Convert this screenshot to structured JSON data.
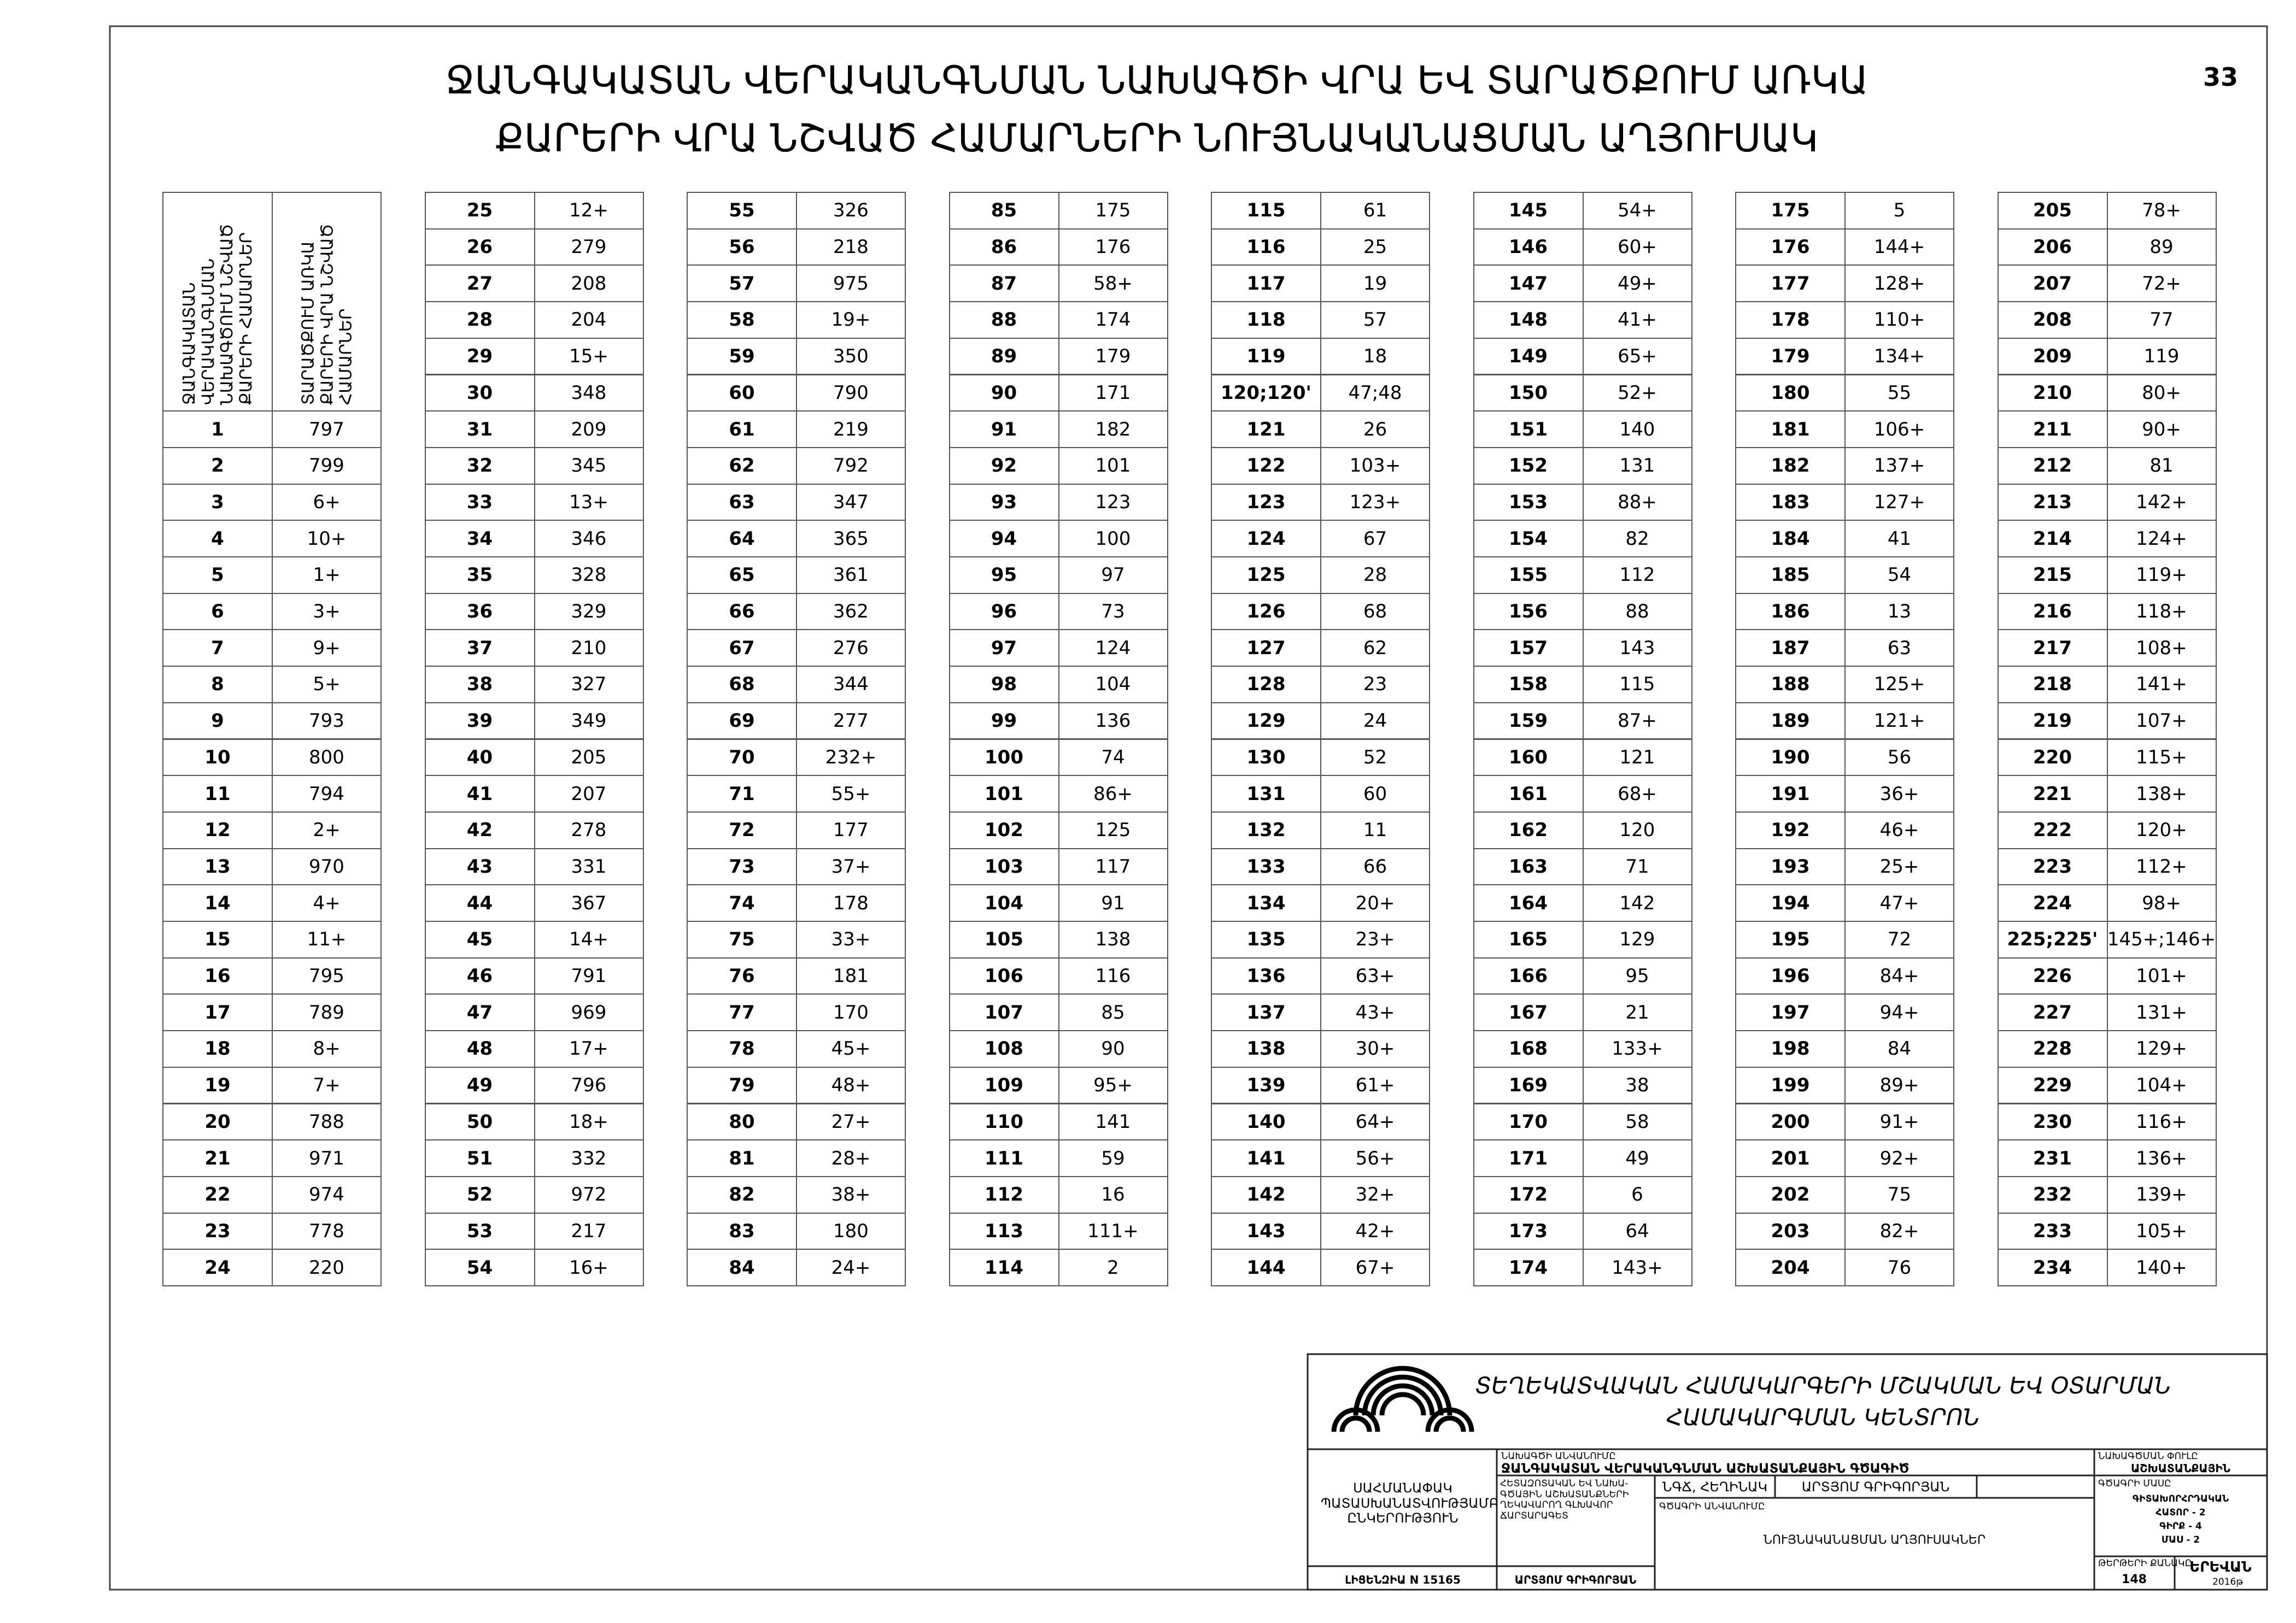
{
  "header": {
    "title_lines": [
      "ՋԱՆԳԱԿԱՏԱՆ ՎԵՐԱԿԱՆԳՆՄԱՆ ՆԱԽԱԳԾԻ ՎՐԱ ԵՎ ՏԱՐԱԾՔՈՒՄ ԱՌԿԱ",
      "ՔԱՐԵՐԻ ՎՐԱ ՆՇՎԱԾ ՀԱՄԱՐՆԵՐԻ ՆՈՒՅՆԱԿԱՆԱՑՄԱՆ ԱՂՅՈՒՍԱԿ"
    ],
    "page_number": "33"
  },
  "table": {
    "column_headers": [
      "ՋԱՆԳԱԿԱՏԱՆ ՎԵՐԱԿԱՆԳՆՄԱՆ ՆԱԽԱԳԾՈՒՄ ՆՇՎԱԾ ՔԱՐԵՐԻ ՀԱՄԱՐՆԵՐ",
      "ՏԱՐԱԾՔՈՒՄ ԱՌԿԱ ՔԱՐԵՐԻ ՎՐԱ ՆՇՎԱԾ ՀԱՄԱՐՆԵՐ"
    ],
    "groups": [
      [
        [
          "1",
          "797"
        ],
        [
          "2",
          "799"
        ],
        [
          "3",
          "6+"
        ],
        [
          "4",
          "10+"
        ],
        [
          "5",
          "1+"
        ],
        [
          "6",
          "3+"
        ],
        [
          "7",
          "9+"
        ],
        [
          "8",
          "5+"
        ],
        [
          "9",
          "793"
        ],
        [
          "10",
          "800"
        ],
        [
          "11",
          "794"
        ],
        [
          "12",
          "2+"
        ],
        [
          "13",
          "970"
        ],
        [
          "14",
          "4+"
        ],
        [
          "15",
          "11+"
        ],
        [
          "16",
          "795"
        ],
        [
          "17",
          "789"
        ],
        [
          "18",
          "8+"
        ],
        [
          "19",
          "7+"
        ],
        [
          "20",
          "788"
        ],
        [
          "21",
          "971"
        ],
        [
          "22",
          "974"
        ],
        [
          "23",
          "778"
        ],
        [
          "24",
          "220"
        ]
      ],
      [
        [
          "25",
          "12+"
        ],
        [
          "26",
          "279"
        ],
        [
          "27",
          "208"
        ],
        [
          "28",
          "204"
        ],
        [
          "29",
          "15+"
        ],
        [
          "30",
          "348"
        ],
        [
          "31",
          "209"
        ],
        [
          "32",
          "345"
        ],
        [
          "33",
          "13+"
        ],
        [
          "34",
          "346"
        ],
        [
          "35",
          "328"
        ],
        [
          "36",
          "329"
        ],
        [
          "37",
          "210"
        ],
        [
          "38",
          "327"
        ],
        [
          "39",
          "349"
        ],
        [
          "40",
          "205"
        ],
        [
          "41",
          "207"
        ],
        [
          "42",
          "278"
        ],
        [
          "43",
          "331"
        ],
        [
          "44",
          "367"
        ],
        [
          "45",
          "14+"
        ],
        [
          "46",
          "791"
        ],
        [
          "47",
          "969"
        ],
        [
          "48",
          "17+"
        ],
        [
          "49",
          "796"
        ],
        [
          "50",
          "18+"
        ],
        [
          "51",
          "332"
        ],
        [
          "52",
          "972"
        ],
        [
          "53",
          "217"
        ],
        [
          "54",
          "16+"
        ]
      ],
      [
        [
          "55",
          "326"
        ],
        [
          "56",
          "218"
        ],
        [
          "57",
          "975"
        ],
        [
          "58",
          "19+"
        ],
        [
          "59",
          "350"
        ],
        [
          "60",
          "790"
        ],
        [
          "61",
          "219"
        ],
        [
          "62",
          "792"
        ],
        [
          "63",
          "347"
        ],
        [
          "64",
          "365"
        ],
        [
          "65",
          "361"
        ],
        [
          "66",
          "362"
        ],
        [
          "67",
          "276"
        ],
        [
          "68",
          "344"
        ],
        [
          "69",
          "277"
        ],
        [
          "70",
          "232+"
        ],
        [
          "71",
          "55+"
        ],
        [
          "72",
          "177"
        ],
        [
          "73",
          "37+"
        ],
        [
          "74",
          "178"
        ],
        [
          "75",
          "33+"
        ],
        [
          "76",
          "181"
        ],
        [
          "77",
          "170"
        ],
        [
          "78",
          "45+"
        ],
        [
          "79",
          "48+"
        ],
        [
          "80",
          "27+"
        ],
        [
          "81",
          "28+"
        ],
        [
          "82",
          "38+"
        ],
        [
          "83",
          "180"
        ],
        [
          "84",
          "24+"
        ]
      ],
      [
        [
          "85",
          "175"
        ],
        [
          "86",
          "176"
        ],
        [
          "87",
          "58+"
        ],
        [
          "88",
          "174"
        ],
        [
          "89",
          "179"
        ],
        [
          "90",
          "171"
        ],
        [
          "91",
          "182"
        ],
        [
          "92",
          "101"
        ],
        [
          "93",
          "123"
        ],
        [
          "94",
          "100"
        ],
        [
          "95",
          "97"
        ],
        [
          "96",
          "73"
        ],
        [
          "97",
          "124"
        ],
        [
          "98",
          "104"
        ],
        [
          "99",
          "136"
        ],
        [
          "100",
          "74"
        ],
        [
          "101",
          "86+"
        ],
        [
          "102",
          "125"
        ],
        [
          "103",
          "117"
        ],
        [
          "104",
          "91"
        ],
        [
          "105",
          "138"
        ],
        [
          "106",
          "116"
        ],
        [
          "107",
          "85"
        ],
        [
          "108",
          "90"
        ],
        [
          "109",
          "95+"
        ],
        [
          "110",
          "141"
        ],
        [
          "111",
          "59"
        ],
        [
          "112",
          "16"
        ],
        [
          "113",
          "111+"
        ],
        [
          "114",
          "2"
        ]
      ],
      [
        [
          "115",
          "61"
        ],
        [
          "116",
          "25"
        ],
        [
          "117",
          "19"
        ],
        [
          "118",
          "57"
        ],
        [
          "119",
          "18"
        ],
        [
          "120;120'",
          "47;48"
        ],
        [
          "121",
          "26"
        ],
        [
          "122",
          "103+"
        ],
        [
          "123",
          "123+"
        ],
        [
          "124",
          "67"
        ],
        [
          "125",
          "28"
        ],
        [
          "126",
          "68"
        ],
        [
          "127",
          "62"
        ],
        [
          "128",
          "23"
        ],
        [
          "129",
          "24"
        ],
        [
          "130",
          "52"
        ],
        [
          "131",
          "60"
        ],
        [
          "132",
          "11"
        ],
        [
          "133",
          "66"
        ],
        [
          "134",
          "20+"
        ],
        [
          "135",
          "23+"
        ],
        [
          "136",
          "63+"
        ],
        [
          "137",
          "43+"
        ],
        [
          "138",
          "30+"
        ],
        [
          "139",
          "61+"
        ],
        [
          "140",
          "64+"
        ],
        [
          "141",
          "56+"
        ],
        [
          "142",
          "32+"
        ],
        [
          "143",
          "42+"
        ],
        [
          "144",
          "67+"
        ]
      ],
      [
        [
          "145",
          "54+"
        ],
        [
          "146",
          "60+"
        ],
        [
          "147",
          "49+"
        ],
        [
          "148",
          "41+"
        ],
        [
          "149",
          "65+"
        ],
        [
          "150",
          "52+"
        ],
        [
          "151",
          "140"
        ],
        [
          "152",
          "131"
        ],
        [
          "153",
          "88+"
        ],
        [
          "154",
          "82"
        ],
        [
          "155",
          "112"
        ],
        [
          "156",
          "88"
        ],
        [
          "157",
          "143"
        ],
        [
          "158",
          "115"
        ],
        [
          "159",
          "87+"
        ],
        [
          "160",
          "121"
        ],
        [
          "161",
          "68+"
        ],
        [
          "162",
          "120"
        ],
        [
          "163",
          "71"
        ],
        [
          "164",
          "142"
        ],
        [
          "165",
          "129"
        ],
        [
          "166",
          "95"
        ],
        [
          "167",
          "21"
        ],
        [
          "168",
          "133+"
        ],
        [
          "169",
          "38"
        ],
        [
          "170",
          "58"
        ],
        [
          "171",
          "49"
        ],
        [
          "172",
          "6"
        ],
        [
          "173",
          "64"
        ],
        [
          "174",
          "143+"
        ]
      ],
      [
        [
          "175",
          "5"
        ],
        [
          "176",
          "144+"
        ],
        [
          "177",
          "128+"
        ],
        [
          "178",
          "110+"
        ],
        [
          "179",
          "134+"
        ],
        [
          "180",
          "55"
        ],
        [
          "181",
          "106+"
        ],
        [
          "182",
          "137+"
        ],
        [
          "183",
          "127+"
        ],
        [
          "184",
          "41"
        ],
        [
          "185",
          "54"
        ],
        [
          "186",
          "13"
        ],
        [
          "187",
          "63"
        ],
        [
          "188",
          "125+"
        ],
        [
          "189",
          "121+"
        ],
        [
          "190",
          "56"
        ],
        [
          "191",
          "36+"
        ],
        [
          "192",
          "46+"
        ],
        [
          "193",
          "25+"
        ],
        [
          "194",
          "47+"
        ],
        [
          "195",
          "72"
        ],
        [
          "196",
          "84+"
        ],
        [
          "197",
          "94+"
        ],
        [
          "198",
          "84"
        ],
        [
          "199",
          "89+"
        ],
        [
          "200",
          "91+"
        ],
        [
          "201",
          "92+"
        ],
        [
          "202",
          "75"
        ],
        [
          "203",
          "82+"
        ],
        [
          "204",
          "76"
        ]
      ],
      [
        [
          "205",
          "78+"
        ],
        [
          "206",
          "89"
        ],
        [
          "207",
          "72+"
        ],
        [
          "208",
          "77"
        ],
        [
          "209",
          "119"
        ],
        [
          "210",
          "80+"
        ],
        [
          "211",
          "90+"
        ],
        [
          "212",
          "81"
        ],
        [
          "213",
          "142+"
        ],
        [
          "214",
          "124+"
        ],
        [
          "215",
          "119+"
        ],
        [
          "216",
          "118+"
        ],
        [
          "217",
          "108+"
        ],
        [
          "218",
          "141+"
        ],
        [
          "219",
          "107+"
        ],
        [
          "220",
          "115+"
        ],
        [
          "221",
          "138+"
        ],
        [
          "222",
          "120+"
        ],
        [
          "223",
          "112+"
        ],
        [
          "224",
          "98+"
        ],
        [
          "225;225'",
          "145+;146+"
        ],
        [
          "226",
          "101+"
        ],
        [
          "227",
          "131+"
        ],
        [
          "228",
          "129+"
        ],
        [
          "229",
          "104+"
        ],
        [
          "230",
          "116+"
        ],
        [
          "231",
          "136+"
        ],
        [
          "232",
          "139+"
        ],
        [
          "233",
          "105+"
        ],
        [
          "234",
          "140+"
        ]
      ]
    ]
  },
  "title_block": {
    "organization": [
      "ՏԵՂԵԿԱՏՎԱԿԱՆ ՀԱՄԱԿԱՐԳԵՐԻ ՄՇԱԿՄԱՆ ԵՎ ՕՏԱՐՄԱՆ",
      "ՀԱՄԱԿԱՐԳՄԱՆ ԿԵՆՏՐՈՆ"
    ],
    "company": "ՍԱՀՄԱՆԱՓԱԿ ՊԱՏԱՍԽԱՆԱՏՎՈՒԹՅԱՄԲ ԸՆԿԵՐՈՒԹՅՈՒՆ",
    "license": "ԼԻՑԵՆԶԻԱ N 15165",
    "project_label": "ՆԱԽԱԳԾԻ ԱՆՎԱՆՈՒՄԸ",
    "project": "ՋԱՆԳԱԿԱՏԱՆ ՎԵՐԱԿԱՆԳՆՄԱՆ ԱՇԽԱՏԱՆՔԱՅԻՆ ԳԾԱԳԻԾ",
    "stage_label": "ՆԱԽԱԳԾՄԱՆ ՓՈՒԼԸ",
    "stage": "ԱՇԽԱՏԱՆՔԱՅԻՆ",
    "role": "ՀԵՏԱԶՈՏԱԿԱՆ ԵՎ ՆԱԽԱ- ԳԾԱՅԻՆ ԱՇԽԱՏԱՆՔՆԵՐԻ ՂԵԿԱՎԱՐՈՂ ԳԼԽԱՎՈՐ ՃԱՐՏԱՐԱԳԵՏ",
    "position": "ՆԳՃ, ՀԵՂԻՆԱԿ",
    "author": "ԱՐՏՅՈՄ ԳՐԻԳՈՐՅԱՆ",
    "drawing_label": "ԳԾԱԳՐԻ ԱՆՎԱՆՈՒՄԸ",
    "drawing": "ՆՈՒՅՆԱԿԱՆԱՑՄԱՆ ԱՂՅՈՒՍԱԿՆԵՐ",
    "part_label": "ԳԾԱԳՐԻ ՄԱՍԸ",
    "part": [
      "ԳԻՏԱԽՈՐՀՐԴԱԿԱՆ",
      "ՀԱՏՈՐ - 2",
      "ԳԻՐՔ - 4",
      "ՄԱՍ - 2"
    ],
    "signature": "ԱՐՏՅՈՄ ԳՐԻԳՈՐՅԱՆ",
    "sheets_label": "ԹԵՐԹԵՐԻ ՔԱՆԱԿԸ",
    "sheets": "148",
    "city": "ԵՐԵՎԱՆ",
    "year": "2016թ"
  }
}
